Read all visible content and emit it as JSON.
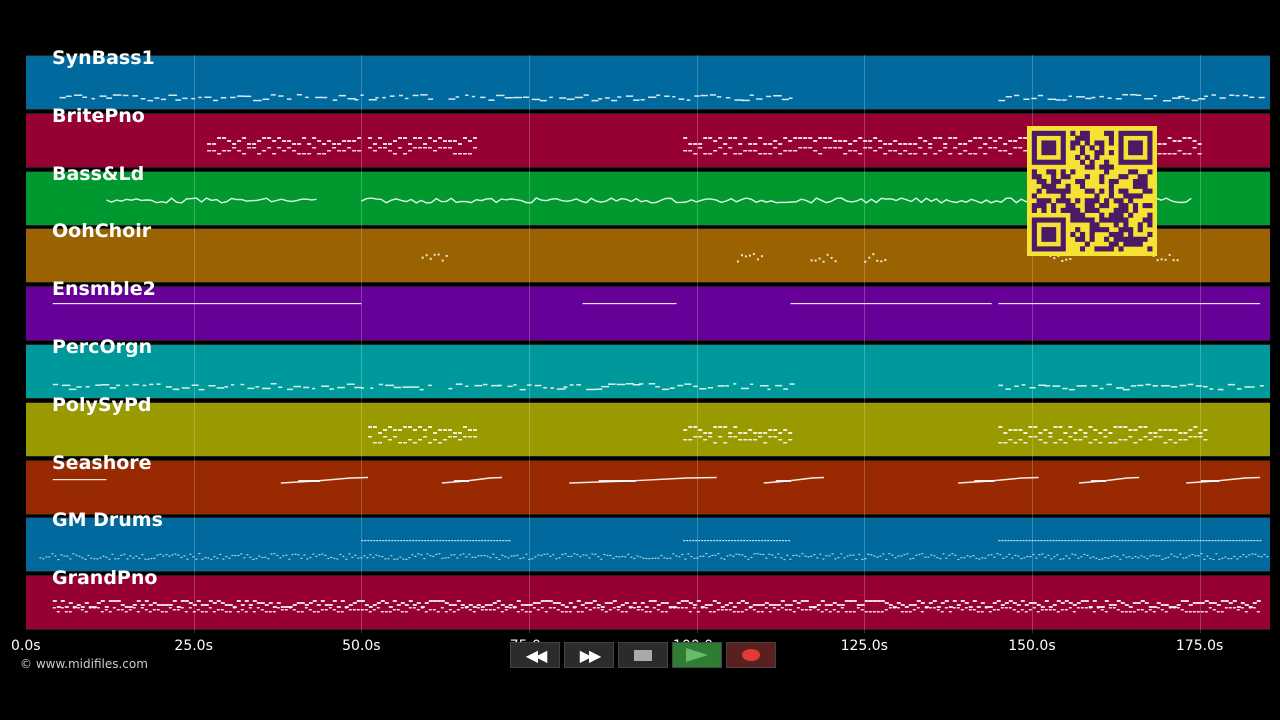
{
  "tracks": [
    {
      "name": "SynBass1",
      "color": "#00699d",
      "pattern": "dash",
      "segments": [
        [
          5,
          60
        ],
        [
          63,
          114
        ],
        [
          145,
          184
        ]
      ]
    },
    {
      "name": "BritePno",
      "color": "#970033",
      "pattern": "block",
      "segments": [
        [
          27,
          50
        ],
        [
          51,
          67
        ],
        [
          98,
          167
        ],
        [
          168,
          175
        ]
      ]
    },
    {
      "name": "Bass&Ld",
      "color": "#00992f",
      "pattern": "wave",
      "segments": [
        [
          12,
          44
        ],
        [
          50,
          174
        ]
      ]
    },
    {
      "name": "OohChoir",
      "color": "#9a6200",
      "pattern": "sparse",
      "segments": [
        [
          59,
          63
        ],
        [
          106,
          110
        ],
        [
          117,
          121
        ],
        [
          125,
          128
        ],
        [
          152,
          156
        ],
        [
          168,
          172
        ]
      ]
    },
    {
      "name": "Ensmble2",
      "color": "#660099",
      "pattern": "line",
      "segments": [
        [
          4,
          50
        ],
        [
          83,
          97
        ],
        [
          114,
          144
        ],
        [
          145,
          184
        ]
      ]
    },
    {
      "name": "PercOrgn",
      "color": "#00999b",
      "pattern": "dash",
      "segments": [
        [
          4,
          60
        ],
        [
          63,
          114
        ],
        [
          145,
          184
        ]
      ]
    },
    {
      "name": "PolySyPd",
      "color": "#999900",
      "pattern": "block",
      "segments": [
        [
          51,
          67
        ],
        [
          98,
          114
        ],
        [
          145,
          176
        ]
      ]
    },
    {
      "name": "Seashore",
      "color": "#992900",
      "pattern": "swoosh",
      "segments": [
        [
          4,
          12
        ],
        [
          38,
          51
        ],
        [
          62,
          71
        ],
        [
          81,
          103
        ],
        [
          110,
          119
        ],
        [
          139,
          151
        ],
        [
          157,
          166
        ],
        [
          173,
          184
        ]
      ]
    },
    {
      "name": "GM Drums",
      "color": "#00699d",
      "pattern": "drums",
      "segments": [
        [
          2,
          185
        ]
      ]
    },
    {
      "name": "GrandPno",
      "color": "#970033",
      "pattern": "dense",
      "segments": [
        [
          4,
          184
        ]
      ]
    }
  ],
  "timeline": {
    "max_seconds": 185.5,
    "ticks": [
      {
        "label": "0.0s",
        "t": 0
      },
      {
        "label": "25.0s",
        "t": 25
      },
      {
        "label": "50.0s",
        "t": 50
      },
      {
        "label": "75.0s",
        "t": 75
      },
      {
        "label": "100.0s",
        "t": 100
      },
      {
        "label": "125.0s",
        "t": 125
      },
      {
        "label": "150.0s",
        "t": 150
      },
      {
        "label": "175.0s",
        "t": 175
      }
    ]
  },
  "copyright": "© www.midifiles.com",
  "transport": {
    "rewind_icon": "rewind-icon",
    "fastforward_icon": "fast-forward-icon",
    "stop_icon": "stop-icon",
    "play_icon": "play-icon",
    "record_icon": "record-icon",
    "rewind_glyph": "◀◀",
    "fastforward_glyph": "▶▶"
  },
  "qr_code": {
    "color": "#f7e233",
    "module_color": "#4b1a66"
  }
}
